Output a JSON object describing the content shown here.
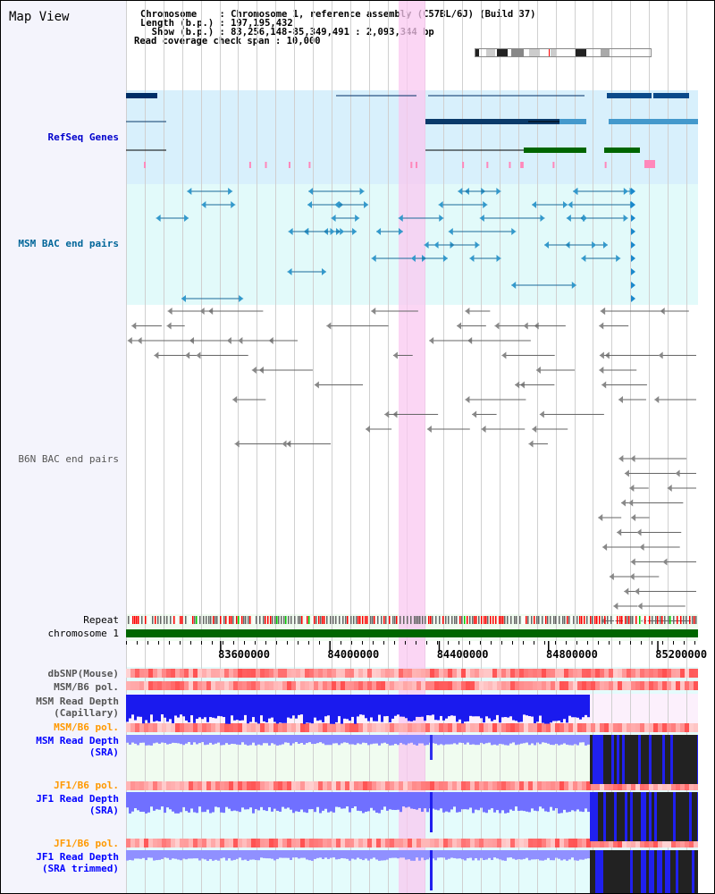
{
  "title": "Map View",
  "header": {
    "chromosome": "Chromosome    : Chromosome 1, reference assembly (C57BL/6J) (Build 37)",
    "length": "Length (b.p.) : 197,195,432",
    "show": "  Show (b.p.) : 83,256,148-85,349,491 : 2,093,344 bp",
    "span": "Read coverage check span : 10,000"
  },
  "view": {
    "start": 83256148,
    "end": 85349491
  },
  "tracks": {
    "refseq": "RefSeq Genes",
    "msm_bac": "MSM BAC end pairs",
    "b6n_bac": "B6N BAC end pairs",
    "repeat": "Repeat",
    "chromosome": "chromosome 1",
    "dbsnp": "dbSNP(Mouse)",
    "msm_b6_pol": "MSM/B6 pol.",
    "msm_depth_cap": "MSM Read Depth\n(Capillary)",
    "msm_b6_pol2": "MSM/B6 pol.",
    "msm_depth_sra": "MSM Read Depth\n(SRA)",
    "jf1_b6_pol": "JF1/B6 pol.",
    "jf1_depth_sra": "JF1 Read Depth\n(SRA)",
    "jf1_b6_pol2": "JF1/B6 pol.",
    "jf1_depth_trim": "JF1 Read Depth\n(SRA trimmed)"
  },
  "ticks": [
    83600000,
    84000000,
    84400000,
    84800000,
    85200000
  ],
  "colors": {
    "refseq_label": "#0000cc",
    "msm_label": "#006699",
    "orange": "#ff9900",
    "blue": "#0000ff",
    "gray": "#555555"
  }
}
